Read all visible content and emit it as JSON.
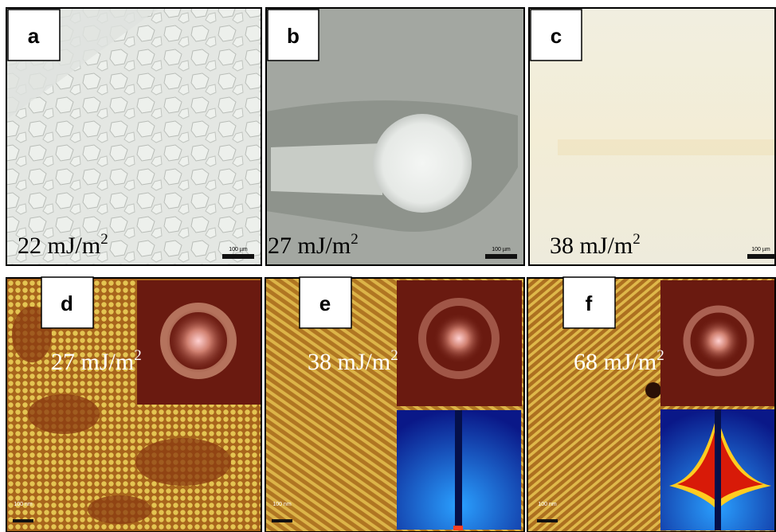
{
  "panels": [
    {
      "label": "a",
      "energy": {
        "text": "22 mJ/m",
        "sup": "2"
      },
      "scale_bar": "100 µm"
    },
    {
      "label": "b",
      "energy": {
        "text": "27 mJ/m",
        "sup": "2"
      },
      "scale_bar": "100 µm"
    },
    {
      "label": "c",
      "energy": {
        "text": "38 mJ/m",
        "sup": "2"
      },
      "scale_bar": "100 µm"
    },
    {
      "label": "d",
      "energy": {
        "text": "27 mJ/m",
        "sup": "2"
      },
      "scale_bar": "100 nm"
    },
    {
      "label": "e",
      "energy": {
        "text": "38 mJ/m",
        "sup": "2"
      },
      "scale_bar": "100 nm"
    },
    {
      "label": "f",
      "energy": {
        "text": "68 mJ/m",
        "sup": "2"
      },
      "scale_bar": "100 nm"
    }
  ]
}
